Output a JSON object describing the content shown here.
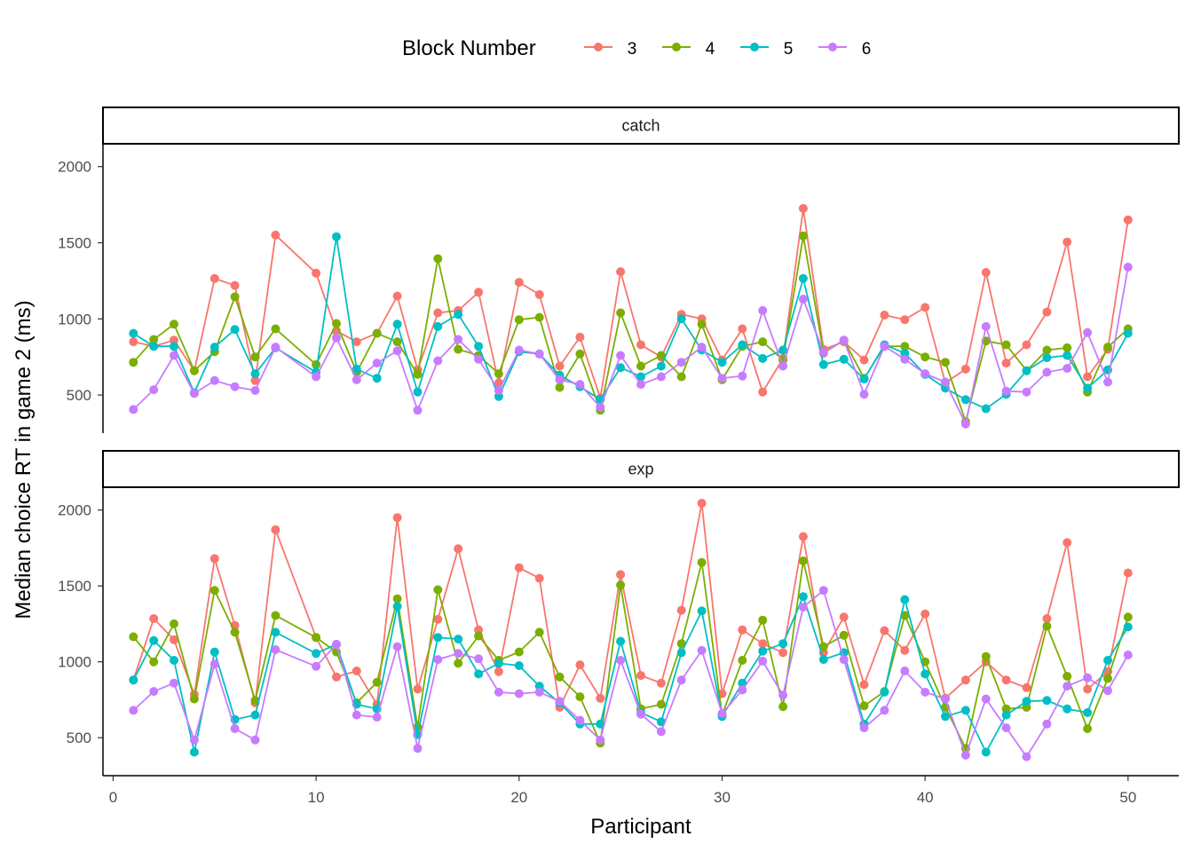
{
  "chart_data": {
    "type": "line",
    "xlabel": "Participant",
    "ylabel": "Median choice RT in game 2 (ms)",
    "legend_title": "Block Number",
    "legend_position": "top",
    "grid": false,
    "xlim": [
      -0.5,
      52.5
    ],
    "ylim": [
      250,
      2150
    ],
    "x_ticks": [
      0,
      10,
      20,
      30,
      40,
      50
    ],
    "y_ticks": [
      500,
      1000,
      1500,
      2000
    ],
    "colors": {
      "3": "#F8766D",
      "4": "#7CAE00",
      "5": "#00BFC4",
      "6": "#C77CFF"
    },
    "x": [
      1,
      2,
      3,
      4,
      5,
      6,
      7,
      8,
      10,
      11,
      12,
      13,
      14,
      15,
      16,
      17,
      18,
      19,
      20,
      21,
      22,
      23,
      24,
      25,
      26,
      27,
      28,
      29,
      30,
      31,
      32,
      33,
      34,
      35,
      36,
      37,
      38,
      39,
      40,
      41,
      42,
      43,
      44,
      45,
      46,
      47,
      48,
      49,
      50
    ],
    "panels": [
      {
        "strip": "catch",
        "series": [
          {
            "name": "3",
            "values": [
              850,
              820,
              860,
              660,
              1265,
              1220,
              595,
              1550,
              1300,
              920,
              850,
              905,
              1150,
              665,
              1040,
              1055,
              1175,
              580,
              1240,
              1160,
              690,
              880,
              480,
              1310,
              830,
              750,
              1030,
              1000,
              730,
              935,
              520,
              740,
              1725,
              800,
              850,
              730,
              1025,
              995,
              1075,
              580,
              670,
              1305,
              710,
              830,
              1045,
              1505,
              620,
              800,
              1650
            ]
          },
          {
            "name": "4",
            "values": [
              715,
              865,
              965,
              660,
              785,
              1145,
              750,
              935,
              700,
              970,
              650,
              905,
              850,
              635,
              1395,
              800,
              760,
              640,
              995,
              1010,
              550,
              770,
              400,
              1040,
              690,
              760,
              620,
              965,
              600,
              820,
              850,
              730,
              1545,
              775,
              860,
              610,
              820,
              820,
              750,
              715,
              325,
              855,
              830,
              660,
              795,
              810,
              520,
              815,
              935
            ]
          },
          {
            "name": "5",
            "values": [
              905,
              820,
              820,
              515,
              815,
              930,
              640,
              810,
              650,
              1540,
              670,
              610,
              965,
              520,
              950,
              1030,
              820,
              490,
              785,
              770,
              630,
              555,
              470,
              680,
              620,
              690,
              1000,
              795,
              715,
              830,
              740,
              795,
              1265,
              700,
              735,
              605,
              830,
              775,
              635,
              545,
              470,
              410,
              505,
              660,
              745,
              760,
              545,
              665,
              905
            ]
          },
          {
            "name": "6",
            "values": [
              405,
              535,
              760,
              510,
              595,
              555,
              530,
              815,
              620,
              875,
              600,
              710,
              790,
              400,
              725,
              865,
              735,
              530,
              795,
              770,
              600,
              570,
              420,
              760,
              570,
              620,
              715,
              815,
              610,
              625,
              1055,
              690,
              1130,
              780,
              860,
              505,
              820,
              735,
              640,
              585,
              310,
              950,
              525,
              520,
              650,
              675,
              910,
              585,
              1340
            ]
          }
        ]
      },
      {
        "strip": "exp",
        "series": [
          {
            "name": "3",
            "values": [
              880,
              1285,
              1145,
              785,
              1680,
              1240,
              730,
              1870,
              1160,
              900,
              940,
              720,
              1950,
              820,
              1280,
              1745,
              1210,
              935,
              1620,
              1550,
              700,
              980,
              760,
              1575,
              910,
              860,
              1340,
              2045,
              790,
              1210,
              1120,
              1060,
              1825,
              1060,
              1295,
              850,
              1205,
              1075,
              1315,
              760,
              880,
              1000,
              880,
              830,
              1285,
              1785,
              820,
              935,
              1585
            ]
          },
          {
            "name": "4",
            "values": [
              1165,
              1000,
              1250,
              755,
              1470,
              1195,
              745,
              1305,
              1160,
              1065,
              730,
              865,
              1415,
              570,
              1475,
              990,
              1170,
              1010,
              1065,
              1195,
              900,
              770,
              465,
              1505,
              690,
              720,
              1120,
              1655,
              650,
              1010,
              1275,
              705,
              1665,
              1100,
              1175,
              710,
              805,
              1305,
              1000,
              700,
              430,
              1035,
              690,
              700,
              1235,
              905,
              560,
              890,
              1295
            ]
          },
          {
            "name": "5",
            "values": [
              880,
              1140,
              1010,
              405,
              1065,
              620,
              650,
              1195,
              1055,
              1115,
              720,
              690,
              1365,
              520,
              1160,
              1150,
              920,
              990,
              975,
              840,
              730,
              590,
              590,
              1135,
              665,
              605,
              1060,
              1335,
              640,
              860,
              1070,
              1120,
              1430,
              1015,
              1060,
              590,
              800,
              1410,
              920,
              640,
              680,
              405,
              650,
              740,
              745,
              690,
              665,
              1010,
              1230
            ]
          },
          {
            "name": "6",
            "values": [
              680,
              805,
              860,
              485,
              985,
              560,
              485,
              1080,
              970,
              1115,
              650,
              635,
              1100,
              430,
              1015,
              1055,
              1020,
              800,
              790,
              800,
              740,
              615,
              485,
              1010,
              655,
              540,
              880,
              1075,
              660,
              815,
              1005,
              780,
              1360,
              1470,
              1015,
              565,
              680,
              940,
              800,
              755,
              385,
              755,
              565,
              375,
              590,
              840,
              895,
              810,
              1045
            ]
          }
        ]
      }
    ]
  }
}
